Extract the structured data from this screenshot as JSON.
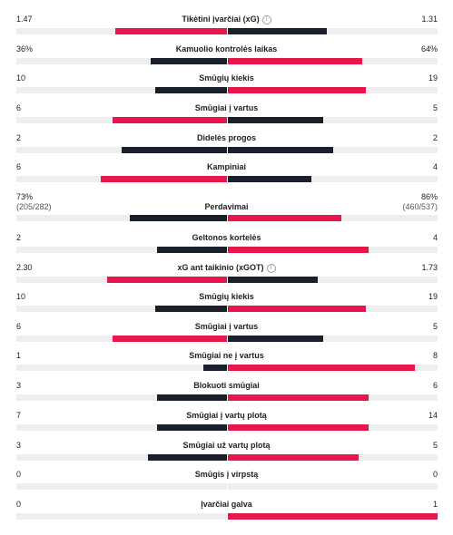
{
  "colors": {
    "dark": "#1a1f2c",
    "red": "#e8164c",
    "track": "#eeeeef"
  },
  "stats": [
    {
      "label": "Tikėtini įvarčiai (xG)",
      "info_icon": true,
      "left": "1.47",
      "right": "1.31",
      "left_ratio": 0.53,
      "right_ratio": 0.47,
      "left_color": "red",
      "right_color": "dark"
    },
    {
      "label": "Kamuolio kontrolės laikas",
      "left": "36%",
      "right": "64%",
      "left_ratio": 0.36,
      "right_ratio": 0.64,
      "left_color": "dark",
      "right_color": "red"
    },
    {
      "label": "Smūgių kiekis",
      "left": "10",
      "right": "19",
      "left_ratio": 0.34,
      "right_ratio": 0.66,
      "left_color": "dark",
      "right_color": "red"
    },
    {
      "label": "Smūgiai į vartus",
      "left": "6",
      "right": "5",
      "left_ratio": 0.545,
      "right_ratio": 0.455,
      "left_color": "red",
      "right_color": "dark"
    },
    {
      "label": "Didelės progos",
      "left": "2",
      "right": "2",
      "left_ratio": 0.5,
      "right_ratio": 0.5,
      "left_color": "dark",
      "right_color": "dark"
    },
    {
      "label": "Kampiniai",
      "left": "6",
      "right": "4",
      "left_ratio": 0.6,
      "right_ratio": 0.4,
      "left_color": "red",
      "right_color": "dark"
    },
    {
      "label": "Perdavimai",
      "left": "73%",
      "left_sub": "(205/282)",
      "right": "86%",
      "right_sub": "(460/537)",
      "left_ratio": 0.46,
      "right_ratio": 0.54,
      "left_color": "dark",
      "right_color": "red"
    },
    {
      "label": "Geltonos kortelės",
      "left": "2",
      "right": "4",
      "left_ratio": 0.33,
      "right_ratio": 0.67,
      "left_color": "dark",
      "right_color": "red"
    },
    {
      "label": "xG ant taikinio (xGOT)",
      "info_icon": true,
      "left": "2.30",
      "right": "1.73",
      "left_ratio": 0.57,
      "right_ratio": 0.43,
      "left_color": "red",
      "right_color": "dark"
    },
    {
      "label": "Smūgių kiekis",
      "left": "10",
      "right": "19",
      "left_ratio": 0.34,
      "right_ratio": 0.66,
      "left_color": "dark",
      "right_color": "red"
    },
    {
      "label": "Smūgiai į vartus",
      "left": "6",
      "right": "5",
      "left_ratio": 0.545,
      "right_ratio": 0.455,
      "left_color": "red",
      "right_color": "dark"
    },
    {
      "label": "Smūgiai ne į vartus",
      "left": "1",
      "right": "8",
      "left_ratio": 0.11,
      "right_ratio": 0.89,
      "left_color": "dark",
      "right_color": "red"
    },
    {
      "label": "Blokuoti smūgiai",
      "left": "3",
      "right": "6",
      "left_ratio": 0.33,
      "right_ratio": 0.67,
      "left_color": "dark",
      "right_color": "red"
    },
    {
      "label": "Smūgiai į vartų plotą",
      "left": "7",
      "right": "14",
      "left_ratio": 0.33,
      "right_ratio": 0.67,
      "left_color": "dark",
      "right_color": "red"
    },
    {
      "label": "Smūgiai už vartų plotą",
      "left": "3",
      "right": "5",
      "left_ratio": 0.375,
      "right_ratio": 0.625,
      "left_color": "dark",
      "right_color": "red"
    },
    {
      "label": "Smūgis į virpstą",
      "left": "0",
      "right": "0",
      "left_ratio": 0,
      "right_ratio": 0,
      "left_color": "dark",
      "right_color": "dark"
    },
    {
      "label": "Įvarčiai galva",
      "left": "0",
      "right": "1",
      "left_ratio": 0,
      "right_ratio": 1,
      "left_color": "dark",
      "right_color": "red"
    }
  ]
}
